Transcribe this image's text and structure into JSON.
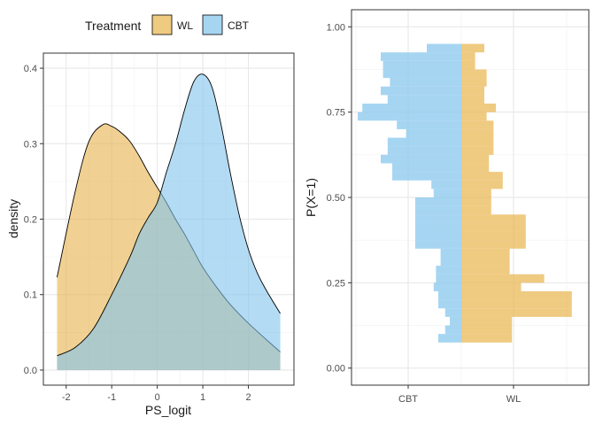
{
  "legend": {
    "title": "Treatment",
    "items": [
      {
        "label": "WL",
        "color": "#E8B34B"
      },
      {
        "label": "CBT",
        "color": "#80C3EC"
      }
    ]
  },
  "chart_data": [
    {
      "type": "area",
      "xlabel": "PS_logit",
      "ylabel": "density",
      "xlim": [
        -2.5,
        3.0
      ],
      "ylim": [
        -0.02,
        0.42
      ],
      "xticks": [
        -2,
        -1,
        0,
        1,
        2
      ],
      "yticks": [
        0.0,
        0.1,
        0.2,
        0.3,
        0.4
      ],
      "grid": true,
      "legend_position": "top",
      "series": [
        {
          "name": "WL",
          "color": "#E8B34B",
          "x": [
            -2.2,
            -1.8,
            -1.5,
            -1.2,
            -1.0,
            -0.8,
            -0.6,
            -0.4,
            -0.2,
            0.0,
            0.2,
            0.4,
            0.6,
            0.8,
            1.0,
            1.3,
            1.6,
            2.0,
            2.4,
            2.7
          ],
          "values": [
            0.123,
            0.237,
            0.303,
            0.325,
            0.323,
            0.315,
            0.303,
            0.284,
            0.262,
            0.242,
            0.222,
            0.2,
            0.18,
            0.158,
            0.136,
            0.11,
            0.087,
            0.062,
            0.04,
            0.024
          ]
        },
        {
          "name": "CBT",
          "color": "#80C3EC",
          "x": [
            -2.2,
            -1.8,
            -1.4,
            -1.0,
            -0.6,
            -0.4,
            -0.2,
            0.0,
            0.2,
            0.4,
            0.6,
            0.8,
            1.0,
            1.2,
            1.4,
            1.6,
            1.8,
            2.0,
            2.2,
            2.4,
            2.7
          ],
          "values": [
            0.019,
            0.03,
            0.055,
            0.1,
            0.15,
            0.18,
            0.202,
            0.222,
            0.262,
            0.3,
            0.345,
            0.382,
            0.392,
            0.375,
            0.325,
            0.262,
            0.205,
            0.16,
            0.128,
            0.105,
            0.075
          ]
        }
      ]
    },
    {
      "type": "bar",
      "orientation": "horizontal-mirrored",
      "xlabel": "",
      "ylabel": "P(X=1)",
      "xticks": [
        "CBT",
        "WL"
      ],
      "ylim": [
        -0.05,
        1.05
      ],
      "yticks": [
        0.0,
        0.25,
        0.5,
        0.75,
        1.0
      ],
      "grid": true,
      "bin_width": 0.025,
      "bins_start": [
        0.075,
        0.1,
        0.125,
        0.15,
        0.175,
        0.2,
        0.225,
        0.25,
        0.275,
        0.3,
        0.325,
        0.35,
        0.375,
        0.4,
        0.425,
        0.45,
        0.475,
        0.5,
        0.525,
        0.55,
        0.575,
        0.6,
        0.625,
        0.65,
        0.675,
        0.7,
        0.725,
        0.75,
        0.775,
        0.8,
        0.825,
        0.85,
        0.875,
        0.9,
        0.925
      ],
      "series": [
        {
          "name": "CBT",
          "color": "#80C3EC",
          "counts": [
            1,
            0.7,
            0.5,
            0.7,
            1,
            1,
            1.2,
            1.1,
            1.1,
            0.9,
            0.9,
            2,
            2,
            2,
            2,
            2,
            2,
            1.2,
            1.3,
            3,
            3,
            3.5,
            3.2,
            3.2,
            2.4,
            2.8,
            4.5,
            4.3,
            3.2,
            3.5,
            3.1,
            3.4,
            3.4,
            3.5,
            1.5
          ]
        },
        {
          "name": "WL",
          "color": "#E8B34B",
          "counts": [
            2.2,
            2.2,
            2.2,
            4.8,
            4.8,
            4.8,
            2.6,
            3.6,
            2.1,
            2.1,
            2.1,
            2.8,
            2.8,
            2.8,
            2.8,
            1.3,
            1.3,
            1.3,
            1.8,
            1.8,
            1.2,
            1.2,
            1.4,
            1.4,
            1.4,
            1.4,
            1.1,
            1.5,
            1.0,
            1.0,
            1.1,
            1.1,
            0.6,
            0.6,
            1.0
          ]
        }
      ]
    }
  ]
}
